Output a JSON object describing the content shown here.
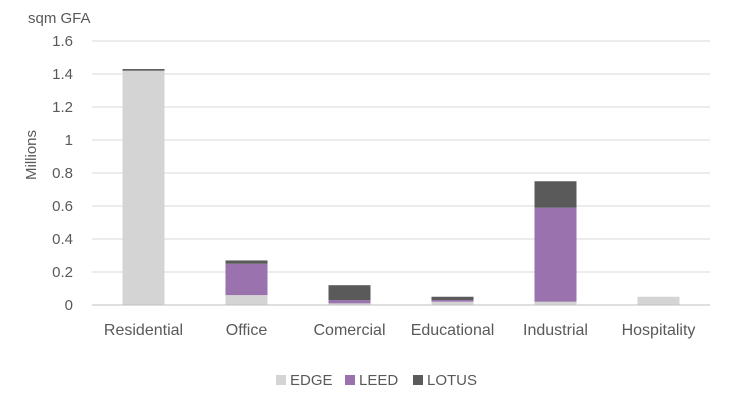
{
  "chart_data": {
    "type": "bar",
    "stacked": true,
    "unit_label": "sqm GFA",
    "ylabel": "Millions",
    "xlabel": "",
    "ylim": [
      0,
      1.6
    ],
    "yticks": [
      "0",
      "0.2",
      "0.4",
      "0.6",
      "0.8",
      "1",
      "1.2",
      "1.4",
      "1.6"
    ],
    "categories": [
      "Residential",
      "Office",
      "Comercial",
      "Educational",
      "Industrial",
      "Hospitality"
    ],
    "series": [
      {
        "name": "EDGE",
        "color": "#d4d4d4",
        "values": [
          1.42,
          0.06,
          0.01,
          0.02,
          0.02,
          0.05
        ]
      },
      {
        "name": "LEED",
        "color": "#9a72ad",
        "values": [
          0.0,
          0.19,
          0.02,
          0.01,
          0.57,
          0.0
        ]
      },
      {
        "name": "LOTUS",
        "color": "#5a5a5a",
        "values": [
          0.01,
          0.02,
          0.09,
          0.02,
          0.16,
          0.0
        ]
      }
    ],
    "grid": true,
    "legend_position": "bottom-center",
    "gridline_color": "#d9d9d9",
    "axis_color": "#bfbfbf"
  }
}
